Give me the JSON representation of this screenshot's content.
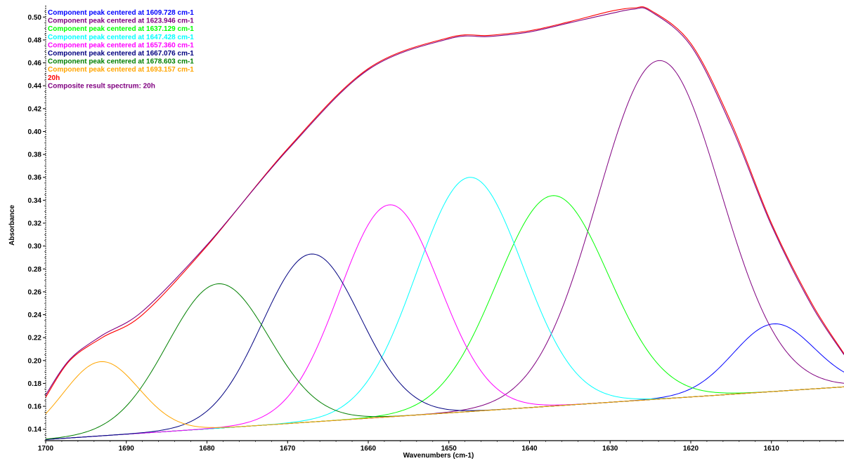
{
  "chart_data": {
    "type": "line",
    "xlabel": "Wavenumbers (cm-1)",
    "ylabel": "Absorbance",
    "xlim": [
      1700,
      1601
    ],
    "ylim": [
      0.13,
      0.51
    ],
    "x_ticks": [
      1700,
      1690,
      1680,
      1670,
      1660,
      1650,
      1640,
      1630,
      1620,
      1610
    ],
    "y_ticks": [
      0.14,
      0.16,
      0.18,
      0.2,
      0.22,
      0.24,
      0.26,
      0.28,
      0.3,
      0.32,
      0.34,
      0.36,
      0.38,
      0.4,
      0.42,
      0.44,
      0.46,
      0.48,
      0.5
    ],
    "x_reversed": true,
    "grid": false,
    "legend_position": "top-left",
    "baseline": {
      "x": [
        1700,
        1601
      ],
      "y": [
        0.131,
        0.177
      ]
    },
    "series": [
      {
        "name": "Component peak centered at 1609.728 cm-1",
        "color": "#0000ff",
        "center": 1609.728,
        "peak": 0.232,
        "sigma": 5.0,
        "x": [
          1700,
          1680,
          1660,
          1640,
          1630,
          1620,
          1615,
          1612,
          1609.7,
          1607,
          1604,
          1601
        ],
        "y": [
          0.131,
          0.14,
          0.149,
          0.159,
          0.164,
          0.171,
          0.19,
          0.215,
          0.232,
          0.225,
          0.212,
          0.2
        ]
      },
      {
        "name": "Component peak centered at 1623.946 cm-1",
        "color": "#800080",
        "center": 1623.946,
        "peak": 0.462,
        "sigma": 7.6,
        "x": [
          1700,
          1660,
          1650,
          1645,
          1640,
          1635,
          1630,
          1626,
          1623.9,
          1620,
          1615,
          1610,
          1605,
          1601
        ],
        "y": [
          0.131,
          0.15,
          0.156,
          0.168,
          0.197,
          0.262,
          0.36,
          0.44,
          0.462,
          0.442,
          0.36,
          0.268,
          0.208,
          0.182
        ]
      },
      {
        "name": "Component peak centered at 1637.129 cm-1",
        "color": "#00ff00",
        "center": 1637.129,
        "peak": 0.344,
        "sigma": 6.9,
        "x": [
          1700,
          1660,
          1655,
          1650,
          1645,
          1640,
          1637.1,
          1633,
          1628,
          1623,
          1618,
          1610,
          1601
        ],
        "y": [
          0.131,
          0.151,
          0.157,
          0.176,
          0.238,
          0.318,
          0.344,
          0.322,
          0.245,
          0.195,
          0.174,
          0.172,
          0.177
        ]
      },
      {
        "name": "Component peak centered at 1647.428 cm-1",
        "color": "#00ffff",
        "center": 1647.428,
        "peak": 0.36,
        "sigma": 6.6,
        "x": [
          1700,
          1670,
          1665,
          1660,
          1655,
          1650,
          1647.4,
          1644,
          1640,
          1635,
          1630,
          1625,
          1601
        ],
        "y": [
          0.131,
          0.146,
          0.16,
          0.198,
          0.268,
          0.342,
          0.36,
          0.335,
          0.27,
          0.201,
          0.172,
          0.166,
          0.177
        ]
      },
      {
        "name": "Component peak centered at 1657.360 cm-1",
        "color": "#ff00ff",
        "center": 1657.36,
        "peak": 0.336,
        "sigma": 6.2,
        "x": [
          1700,
          1680,
          1675,
          1670,
          1665,
          1660,
          1657.4,
          1654,
          1650,
          1645,
          1640,
          1635,
          1601
        ],
        "y": [
          0.131,
          0.141,
          0.15,
          0.186,
          0.26,
          0.32,
          0.336,
          0.318,
          0.26,
          0.19,
          0.163,
          0.161,
          0.177
        ]
      },
      {
        "name": "Component peak centered at 1667.076 cm-1",
        "color": "#000080",
        "center": 1667.076,
        "peak": 0.293,
        "sigma": 6.1,
        "x": [
          1700,
          1685,
          1680,
          1675,
          1670,
          1667.1,
          1664,
          1660,
          1655,
          1650,
          1645,
          1601
        ],
        "y": [
          0.131,
          0.14,
          0.157,
          0.212,
          0.278,
          0.293,
          0.281,
          0.23,
          0.175,
          0.158,
          0.157,
          0.177
        ]
      },
      {
        "name": "Component peak centered at 1678.603 cm-1",
        "color": "#008000",
        "center": 1678.603,
        "peak": 0.267,
        "sigma": 6.3,
        "x": [
          1700,
          1695,
          1690,
          1685,
          1680,
          1678.6,
          1675,
          1670,
          1665,
          1660,
          1655,
          1601
        ],
        "y": [
          0.134,
          0.148,
          0.184,
          0.236,
          0.265,
          0.267,
          0.255,
          0.218,
          0.177,
          0.157,
          0.152,
          0.177
        ]
      },
      {
        "name": "Component peak centered at 1693.157 cm-1",
        "color": "#ffa500",
        "center": 1693.157,
        "peak": 0.199,
        "sigma": 4.7,
        "x": [
          1700,
          1697,
          1695,
          1693.2,
          1690,
          1687,
          1684,
          1680,
          1601
        ],
        "y": [
          0.167,
          0.191,
          0.198,
          0.199,
          0.189,
          0.167,
          0.151,
          0.142,
          0.177
        ]
      },
      {
        "name": "20h",
        "color": "#ff0000",
        "x": [
          1700,
          1697,
          1693,
          1688,
          1680,
          1670,
          1660,
          1650,
          1645,
          1640,
          1635,
          1630,
          1627,
          1625,
          1620,
          1615,
          1610,
          1605,
          1601
        ],
        "y": [
          0.168,
          0.2,
          0.22,
          0.24,
          0.3,
          0.385,
          0.455,
          0.482,
          0.484,
          0.488,
          0.496,
          0.505,
          0.508,
          0.506,
          0.477,
          0.408,
          0.32,
          0.25,
          0.206
        ]
      },
      {
        "name": "Composite result spectrum: 20h",
        "color": "#800080",
        "x": [
          1700,
          1697,
          1693,
          1688,
          1680,
          1670,
          1660,
          1650,
          1645,
          1640,
          1635,
          1630,
          1627,
          1625,
          1620,
          1615,
          1610,
          1605,
          1601
        ],
        "y": [
          0.17,
          0.201,
          0.222,
          0.243,
          0.301,
          0.384,
          0.454,
          0.481,
          0.483,
          0.487,
          0.495,
          0.503,
          0.507,
          0.505,
          0.475,
          0.405,
          0.318,
          0.248,
          0.205
        ]
      }
    ]
  }
}
